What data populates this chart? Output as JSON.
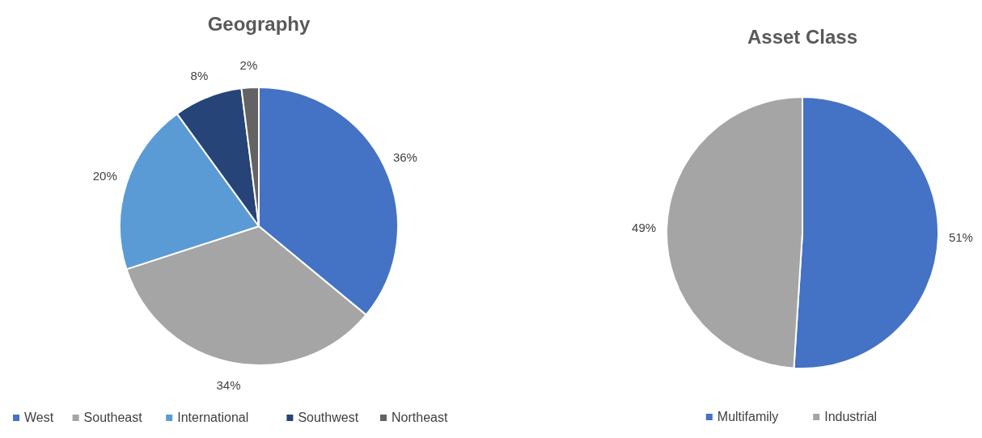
{
  "chart_data": [
    {
      "type": "pie",
      "title": "Geography",
      "categories": [
        "West",
        "Southeast",
        "International",
        "Southwest",
        "Northeast"
      ],
      "values": [
        36,
        34,
        20,
        8,
        2
      ],
      "value_labels": [
        "36%",
        "34%",
        "20%",
        "8%",
        "2%"
      ],
      "colors": [
        "#4472c4",
        "#a5a5a5",
        "#5b9bd5",
        "#264478",
        "#636363"
      ],
      "legend": "bottom"
    },
    {
      "type": "pie",
      "title": "Asset Class",
      "categories": [
        "Multifamily",
        "Industrial"
      ],
      "values": [
        51,
        49
      ],
      "value_labels": [
        "51%",
        "49%"
      ],
      "colors": [
        "#4472c4",
        "#a5a5a5"
      ],
      "legend": "bottom"
    }
  ]
}
